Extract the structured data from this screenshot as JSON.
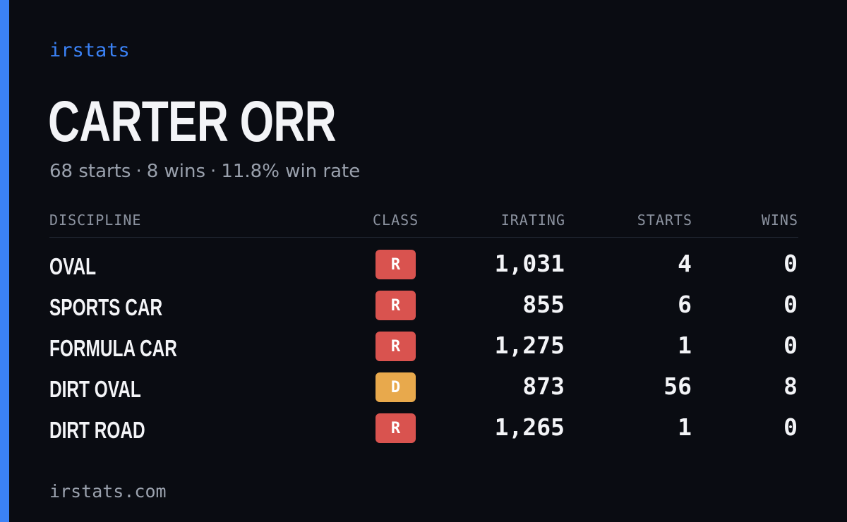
{
  "brand": "irstats",
  "player": {
    "name": "CARTER ORR",
    "starts": "68 starts",
    "wins": "8 wins",
    "win_rate": "11.8% win rate",
    "separator": "·"
  },
  "table": {
    "headers": {
      "discipline": "DISCIPLINE",
      "class": "CLASS",
      "irating": "IRATING",
      "starts": "STARTS",
      "wins": "WINS"
    },
    "rows": [
      {
        "discipline": "OVAL",
        "class": "R",
        "irating": "1,031",
        "starts": "4",
        "wins": "0"
      },
      {
        "discipline": "SPORTS CAR",
        "class": "R",
        "irating": "855",
        "starts": "6",
        "wins": "0"
      },
      {
        "discipline": "FORMULA CAR",
        "class": "R",
        "irating": "1,275",
        "starts": "1",
        "wins": "0"
      },
      {
        "discipline": "DIRT OVAL",
        "class": "D",
        "irating": "873",
        "starts": "56",
        "wins": "8"
      },
      {
        "discipline": "DIRT ROAD",
        "class": "R",
        "irating": "1,265",
        "starts": "1",
        "wins": "0"
      }
    ]
  },
  "class_colors": {
    "R": "#d9534f",
    "D": "#e8a94c"
  },
  "colors": {
    "background": "#0a0c12",
    "accent": "#3b82f6",
    "text": "#f3f4f7",
    "muted": "#9aa1ad"
  },
  "footer": {
    "url": "irstats.com"
  }
}
